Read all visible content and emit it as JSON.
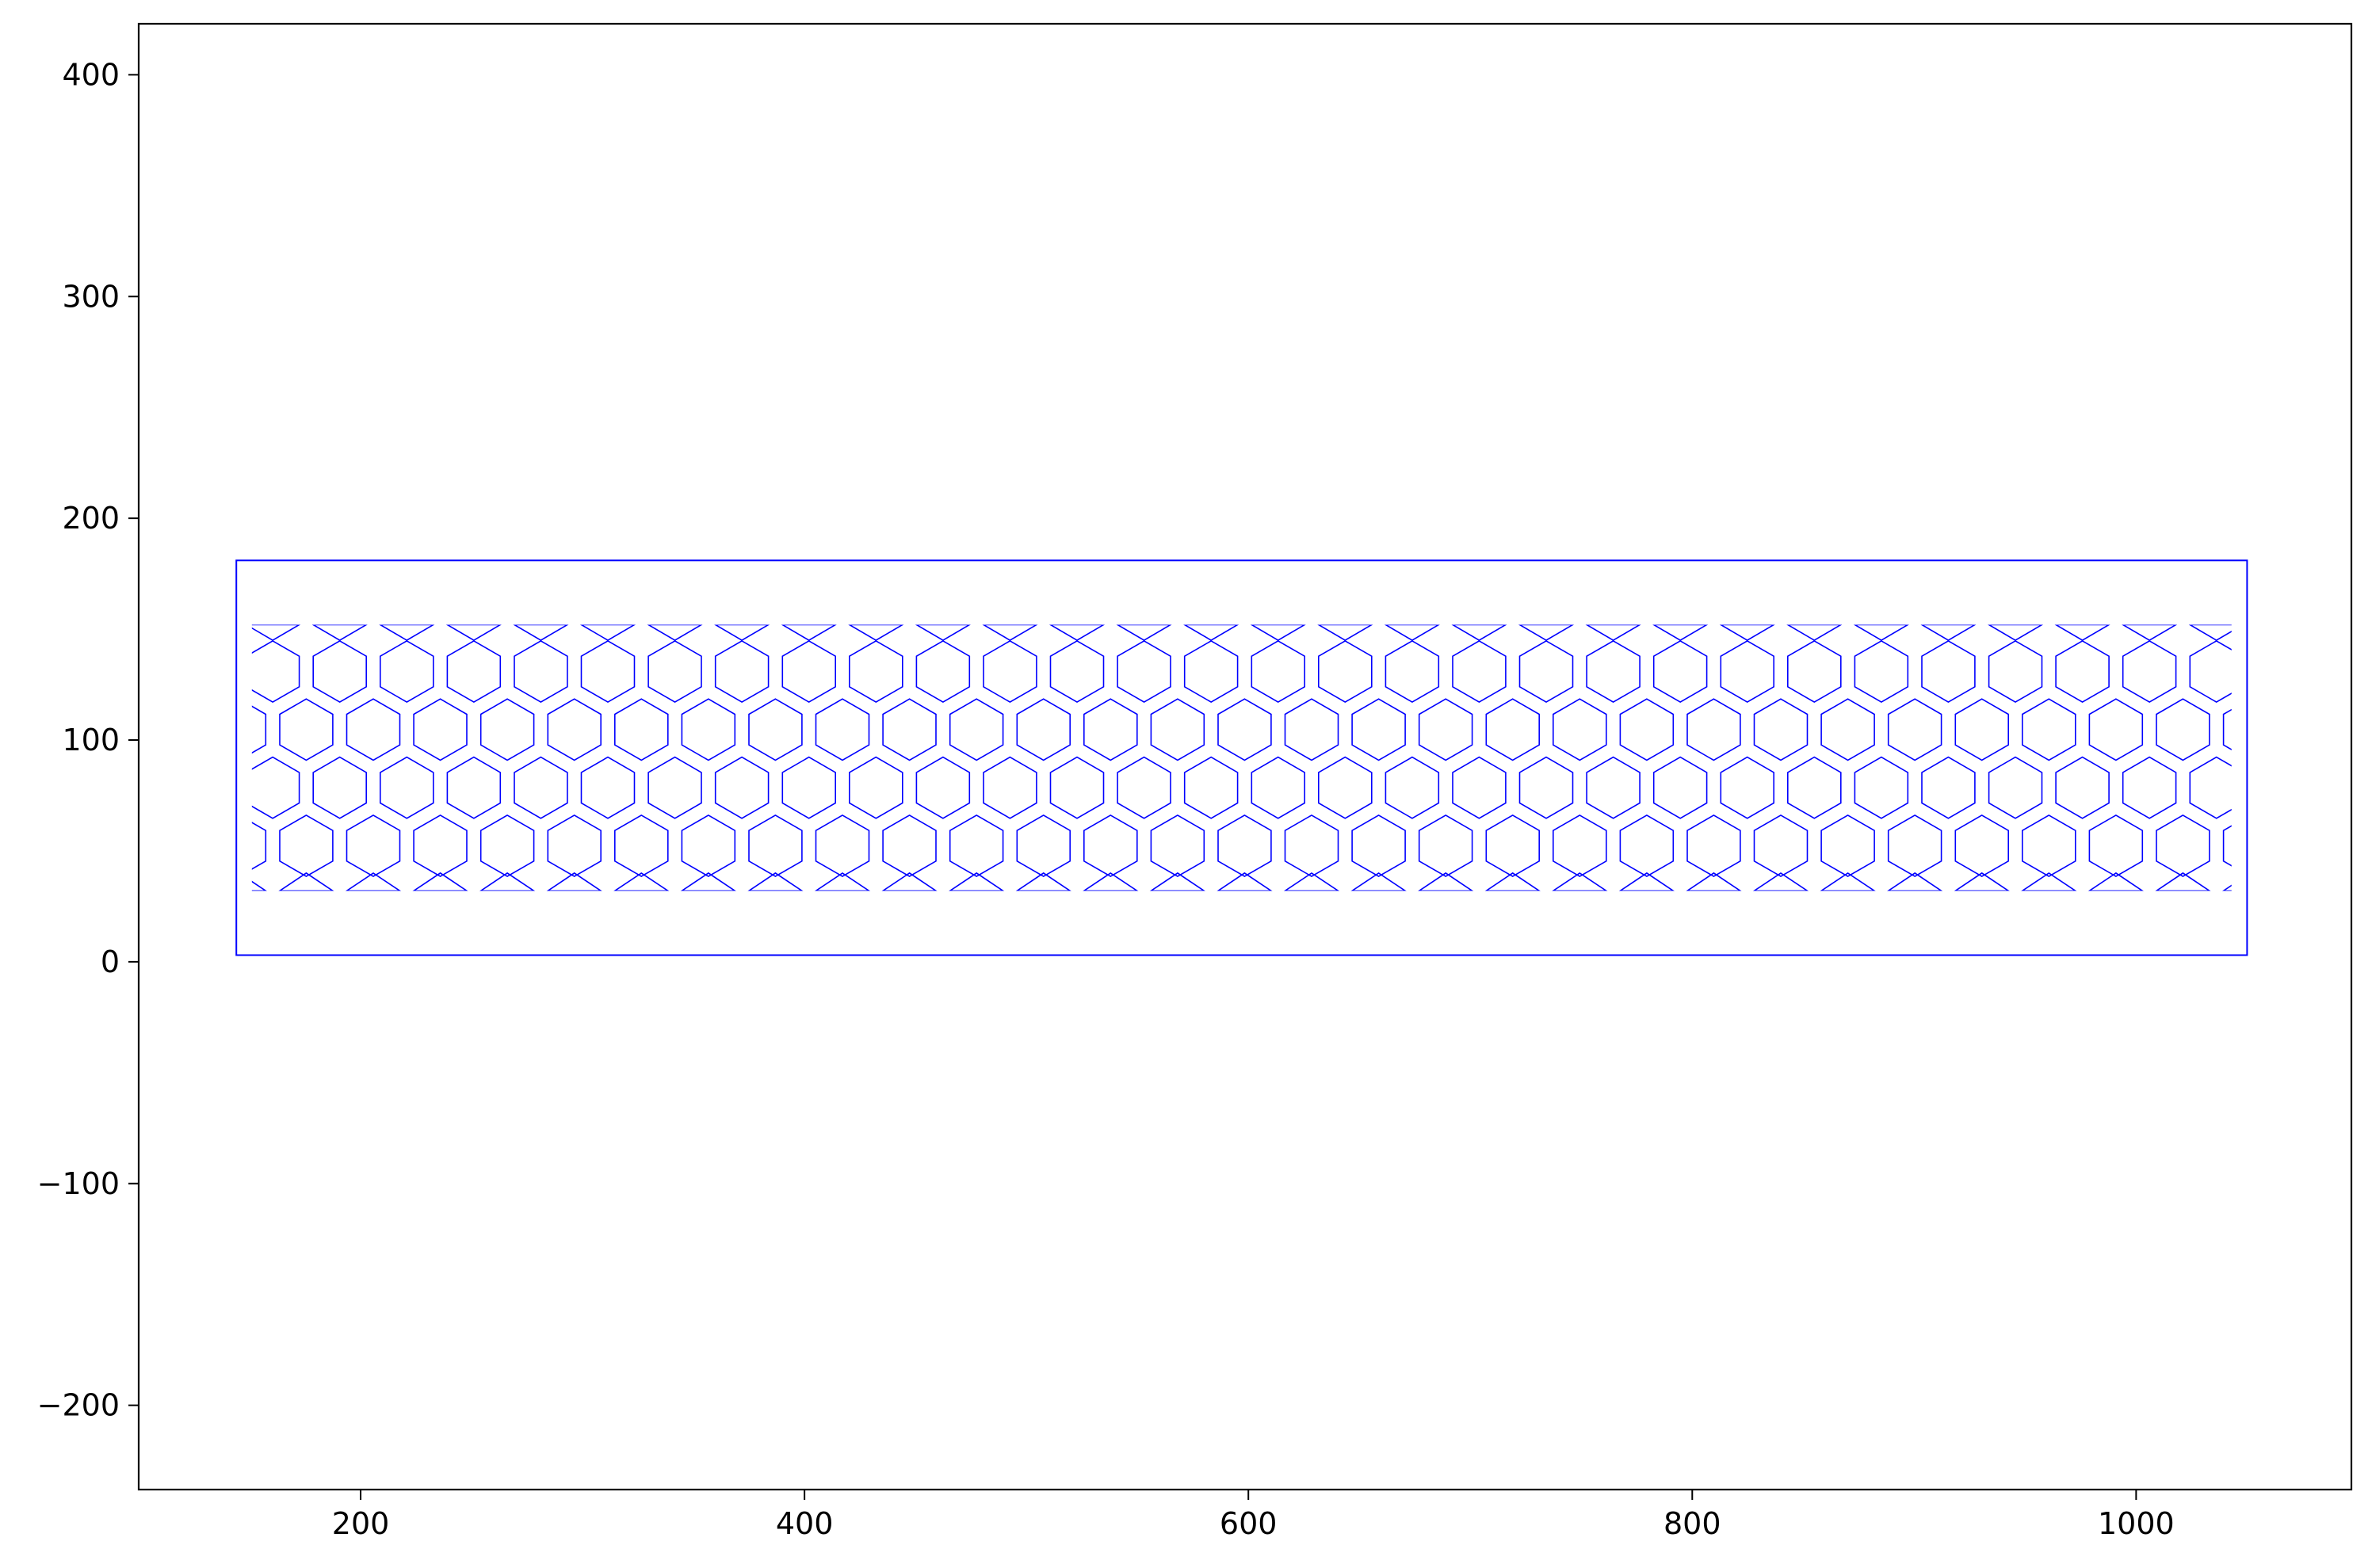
{
  "chart_data": {
    "type": "line",
    "title": "",
    "xlabel": "",
    "ylabel": "",
    "xlim": [
      100,
      1097
    ],
    "ylim": [
      -238,
      423
    ],
    "x_ticks": [
      200,
      400,
      600,
      800,
      1000
    ],
    "y_ticks": [
      -200,
      -100,
      0,
      100,
      200,
      300,
      400
    ],
    "x_tick_labels": [
      "200",
      "400",
      "600",
      "800",
      "1000"
    ],
    "y_tick_labels": [
      "−200",
      "−100",
      "0",
      "100",
      "200",
      "300",
      "400"
    ],
    "grid": false,
    "line_color": "#0000ff",
    "outer_rect": {
      "x": [
        144,
        1050
      ],
      "y": [
        3,
        181
      ]
    },
    "lattice": {
      "cell": "regular hexagon",
      "columns": 30,
      "rows": 4,
      "column_pitch": 30.2,
      "row_pitch": 26.2,
      "hex_radius": 13.8,
      "x_bounds": [
        151,
        1043
      ],
      "y_bounds": [
        32,
        152
      ],
      "first_row_center_y": 52.3,
      "first_row_center_x": 175.5,
      "odd_row_shift": -15.1,
      "top_band_triangles": {
        "count": 30,
        "first_center_x": 160.4,
        "base_y": 152,
        "apex_y": 145
      },
      "bottom_band_triangles": {
        "count": 30,
        "first_center_x": 175.5,
        "base_y": 32,
        "apex_y": 40
      }
    }
  }
}
